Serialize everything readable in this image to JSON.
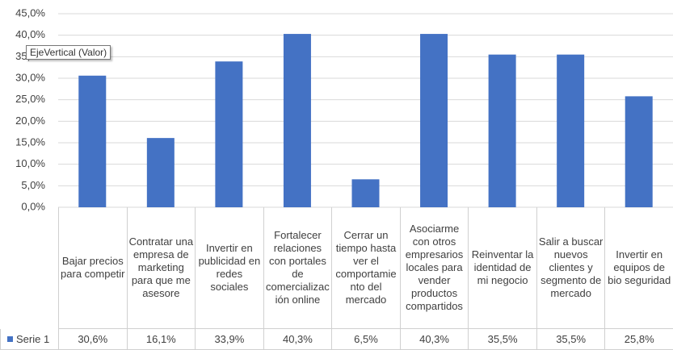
{
  "chart_data": {
    "type": "bar",
    "categories": [
      "Bajar precios para competir",
      "Contratar una empresa de marketing para que me asesore",
      "Invertir en publicidad en redes sociales",
      "Fortalecer relaciones con portales de comercialización online",
      "Cerrar un tiempo hasta ver el comportamiento del mercado",
      "Asociarme con otros empresarios locales para vender productos compartidos",
      "Reinventar la identidad de mi negocio",
      "Salir a buscar nuevos clientes y segmento de mercado",
      "Invertir en equipos de bio seguridad"
    ],
    "series": [
      {
        "name": "Serie 1",
        "color": "#4472c4",
        "values": [
          30.6,
          16.1,
          33.9,
          40.3,
          6.5,
          40.3,
          35.5,
          35.5,
          25.8
        ],
        "value_labels": [
          "30,6%",
          "16,1%",
          "33,9%",
          "40,3%",
          "6,5%",
          "40,3%",
          "35,5%",
          "35,5%",
          "25,8%"
        ]
      }
    ],
    "ylim": [
      0,
      45
    ],
    "yticks": [
      {
        "value": 0,
        "label": "0,0%"
      },
      {
        "value": 5,
        "label": "5,0%"
      },
      {
        "value": 10,
        "label": "10,0%"
      },
      {
        "value": 15,
        "label": "15,0%"
      },
      {
        "value": 20,
        "label": "20,0%"
      },
      {
        "value": 25,
        "label": "25,0%"
      },
      {
        "value": 30,
        "label": "30,0%"
      },
      {
        "value": 35,
        "label": "35,0%"
      },
      {
        "value": 40,
        "label": "40,0%"
      },
      {
        "value": 45,
        "label": "45,0%"
      }
    ],
    "grid": true,
    "tooltip": "EjeVertical (Valor)"
  }
}
